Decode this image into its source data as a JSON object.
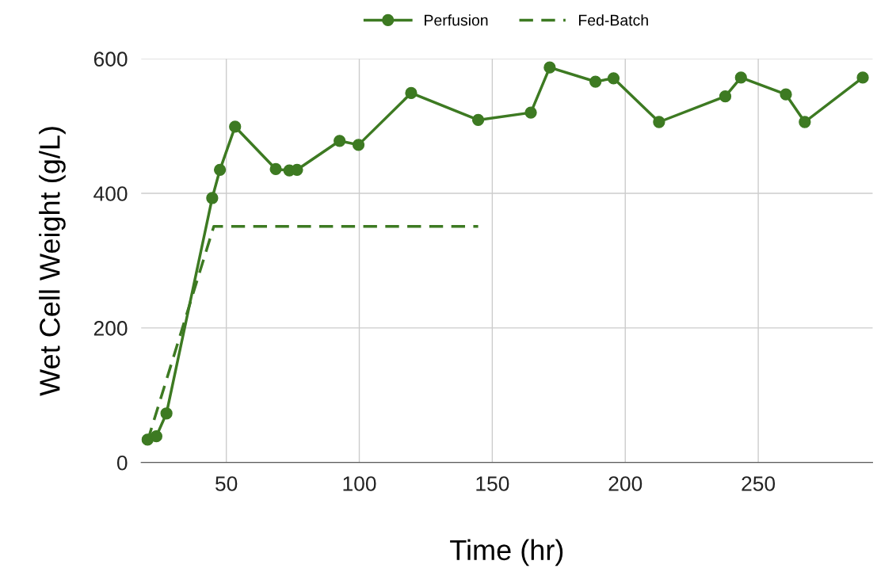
{
  "chart_data": {
    "type": "line",
    "xlabel": "Time (hr)",
    "ylabel": "Wet Cell Weight (g/L)",
    "xlim": [
      18,
      293
    ],
    "xticks": [
      50,
      100,
      150,
      200,
      250
    ],
    "ylim": [
      0,
      600
    ],
    "yticks": [
      0,
      200,
      400,
      600
    ],
    "grid": true,
    "legend": "top",
    "series": [
      {
        "name": "Perfusion",
        "color": "#3d7a22",
        "marker": "circle",
        "line_style": "solid",
        "x": [
          20.4,
          23.7,
          27.5,
          44.7,
          47.6,
          53.3,
          68.6,
          73.7,
          76.6,
          92.6,
          99.7,
          119.5,
          144.7,
          164.5,
          171.6,
          188.8,
          195.6,
          212.7,
          237.6,
          243.5,
          260.4,
          267.5,
          289.3
        ],
        "values": [
          34,
          39,
          73,
          393,
          435,
          499,
          436,
          434,
          435,
          478,
          472,
          549,
          509,
          520,
          587,
          566,
          571,
          506,
          544,
          572,
          547,
          506,
          572
        ]
      },
      {
        "name": "Fed-Batch",
        "color": "#3d7a22",
        "marker": "none",
        "line_style": "dashed",
        "x": [
          20.4,
          45.3,
          144.7
        ],
        "values": [
          32,
          351,
          351
        ]
      }
    ]
  }
}
